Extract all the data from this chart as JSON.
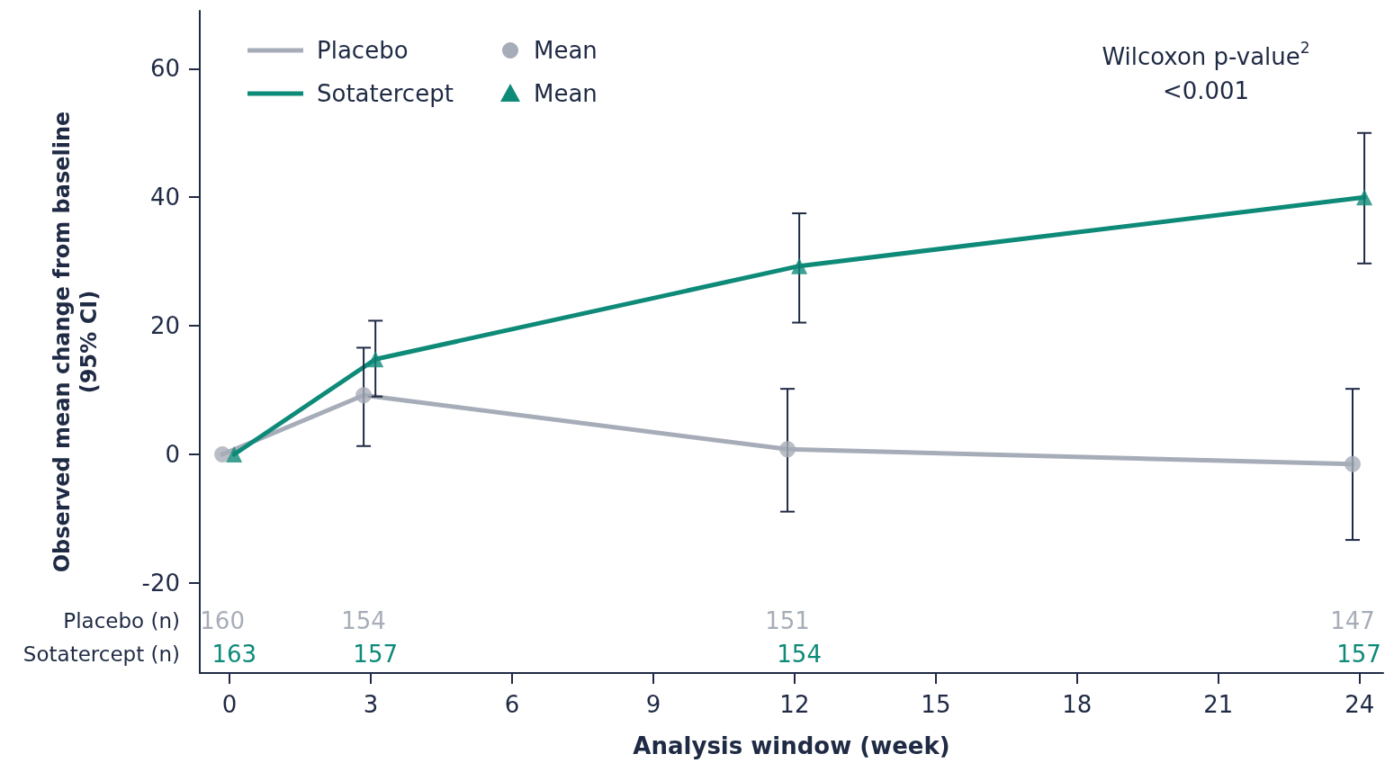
{
  "chart_data": {
    "type": "line",
    "xlabel": "Analysis window (week)",
    "ylabel": "Observed mean change from baseline\n(95% CI)",
    "xlim": [
      -0.63,
      24.5
    ],
    "xticks": [
      0,
      3,
      6,
      9,
      12,
      15,
      18,
      21,
      24
    ],
    "ylim": [
      -34,
      69
    ],
    "yticks": [
      -20,
      0,
      20,
      40,
      60
    ],
    "grid": false,
    "legend": "top left",
    "series": [
      {
        "name": "Placebo",
        "marker": "none",
        "color": "#a7adb8",
        "x": [
          -0.15,
          2.85,
          11.85,
          23.85
        ],
        "values": [
          0,
          9.2,
          0.8,
          -1.5
        ]
      },
      {
        "name": "Sotatercept",
        "marker": "none",
        "color": "#0e8a78",
        "x": [
          0.1,
          3.1,
          12.1,
          24.1
        ],
        "values": [
          0,
          14.8,
          29.3,
          40
        ]
      },
      {
        "name": "Mean",
        "type": "scatter",
        "marker": "circle",
        "color": "#a7adb8",
        "x": [
          -0.15,
          2.85,
          11.85,
          23.85
        ],
        "values": [
          0,
          9.2,
          0.8,
          -1.5
        ],
        "errors": [
          null,
          [
            1.3,
            16.6
          ],
          [
            -8.9,
            10.2
          ],
          [
            -13.3,
            10.2
          ]
        ]
      },
      {
        "name": "Mean",
        "type": "scatter",
        "marker": "triangle",
        "color": "#0e8a78",
        "x": [
          0.1,
          3.1,
          12.1,
          24.1
        ],
        "values": [
          0,
          14.8,
          29.3,
          40
        ],
        "errors": [
          null,
          [
            9,
            20.8
          ],
          [
            20.5,
            37.5
          ],
          [
            29.7,
            50
          ]
        ]
      }
    ],
    "annotations": [
      "Wilcoxon p-value$^{2}$\n<0.001",
      "Placebo (n)",
      "160",
      "154",
      "151",
      "147",
      "Sotatercept (n)",
      "163",
      "157",
      "154",
      "157"
    ]
  }
}
